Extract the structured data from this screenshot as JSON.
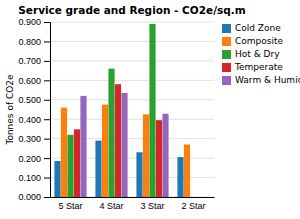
{
  "chart_data": {
    "type": "bar",
    "title": "Service grade and Region - CO2e/sq.m",
    "ylabel": "Tonnes of CO2e",
    "categories": [
      "5 Star",
      "4 Star",
      "3 Star",
      "2 Star"
    ],
    "series": [
      {
        "name": "Cold Zone",
        "values": [
          0.185,
          0.29,
          0.23,
          0.205
        ]
      },
      {
        "name": "Composite",
        "values": [
          0.46,
          0.475,
          0.425,
          0.27
        ]
      },
      {
        "name": "Hot & Dry",
        "values": [
          0.32,
          0.66,
          0.89,
          0.0
        ]
      },
      {
        "name": "Temperate",
        "values": [
          0.348,
          0.58,
          0.395,
          0.0
        ]
      },
      {
        "name": "Warm & Humid",
        "values": [
          0.52,
          0.535,
          0.428,
          0.0
        ]
      }
    ],
    "ylim": [
      0.0,
      0.9
    ],
    "yticks": [
      {
        "value": 0.0,
        "label": "0.000"
      },
      {
        "value": 0.1,
        "label": "0.100"
      },
      {
        "value": 0.2,
        "label": "0.200"
      },
      {
        "value": 0.3,
        "label": "0.300"
      },
      {
        "value": 0.4,
        "label": "0.400"
      },
      {
        "value": 0.5,
        "label": "0.500"
      },
      {
        "value": 0.6,
        "label": "0.600"
      },
      {
        "value": 0.7,
        "label": "0.700"
      },
      {
        "value": 0.8,
        "label": "0.800"
      },
      {
        "value": 0.9,
        "label": "0.900"
      }
    ],
    "grid": true,
    "legend": "right"
  }
}
